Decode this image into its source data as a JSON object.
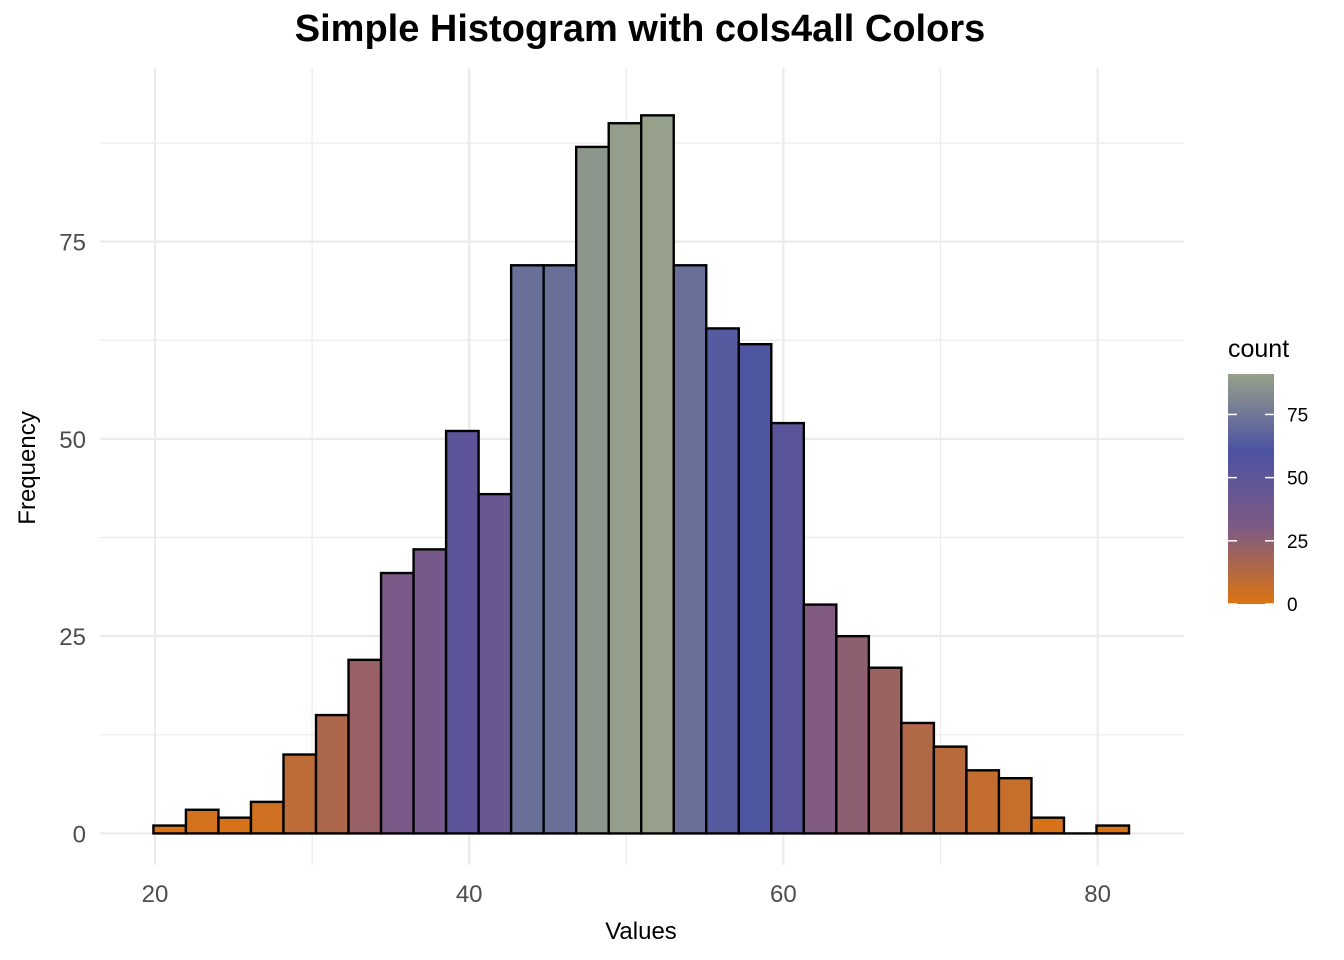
{
  "chart_data": {
    "type": "bar",
    "title": "Simple Histogram with cols4all Colors",
    "xlabel": "Values",
    "ylabel": "Frequency",
    "xlim": [
      16.5,
      85.5
    ],
    "ylim": [
      -4,
      97
    ],
    "x_ticks": [
      20,
      40,
      60,
      80
    ],
    "y_ticks": [
      0,
      25,
      50,
      75
    ],
    "bin_width": 2.07,
    "bin_start": 19.9,
    "values": [
      1,
      3,
      2,
      4,
      10,
      15,
      22,
      33,
      36,
      51,
      43,
      72,
      72,
      87,
      90,
      91,
      72,
      64,
      62,
      52,
      29,
      25,
      21,
      14,
      11,
      8,
      7,
      2,
      0,
      1
    ],
    "grid": true,
    "legend": {
      "title": "count",
      "position": "right",
      "ticks": [
        0,
        25,
        50,
        75
      ],
      "range": [
        0,
        91
      ],
      "colors": [
        "#dc7411",
        "#7d5a85",
        "#4c53a2",
        "#97a08a"
      ]
    }
  }
}
